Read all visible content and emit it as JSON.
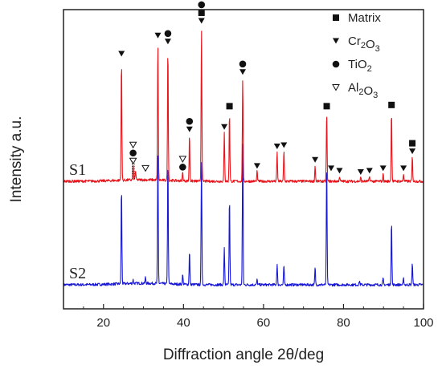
{
  "chart_data": {
    "type": "line",
    "xlabel": "Diffraction angle 2θ/deg",
    "ylabel": "Intensity a.u.",
    "xlim": [
      10,
      100
    ],
    "xticks": [
      20,
      40,
      60,
      80,
      100
    ],
    "yticks_shown": false,
    "grid": false,
    "legend_position": "top-right",
    "colors": {
      "S1": "#e8141b",
      "S2": "#1717d4",
      "marker": "#111111"
    },
    "legend": [
      {
        "symbol": "square",
        "label": "Matrix"
      },
      {
        "symbol": "triangle-down",
        "label": "Cr2O3"
      },
      {
        "symbol": "circle",
        "label": "TiO2"
      },
      {
        "symbol": "triangle-down-open",
        "label": "Al2O3"
      }
    ],
    "series": [
      {
        "name": "S1",
        "baseline": 0,
        "peaks": [
          {
            "x": 24.5,
            "y": 100
          },
          {
            "x": 27.4,
            "y": 12
          },
          {
            "x": 28.0,
            "y": 8
          },
          {
            "x": 33.6,
            "y": 115
          },
          {
            "x": 36.1,
            "y": 110
          },
          {
            "x": 39.8,
            "y": 7
          },
          {
            "x": 41.5,
            "y": 38
          },
          {
            "x": 44.5,
            "y": 127
          },
          {
            "x": 50.2,
            "y": 40
          },
          {
            "x": 51.5,
            "y": 57
          },
          {
            "x": 54.8,
            "y": 85
          },
          {
            "x": 58.4,
            "y": 8
          },
          {
            "x": 63.4,
            "y": 24
          },
          {
            "x": 65.1,
            "y": 25
          },
          {
            "x": 72.9,
            "y": 13
          },
          {
            "x": 75.8,
            "y": 57
          },
          {
            "x": 79.0,
            "y": 4
          },
          {
            "x": 84.3,
            "y": 3
          },
          {
            "x": 86.5,
            "y": 4
          },
          {
            "x": 89.9,
            "y": 6
          },
          {
            "x": 92.0,
            "y": 58
          },
          {
            "x": 95.0,
            "y": 6
          },
          {
            "x": 97.2,
            "y": 20
          }
        ]
      },
      {
        "name": "S2",
        "baseline": 0,
        "peaks": [
          {
            "x": 24.5,
            "y": 80
          },
          {
            "x": 27.4,
            "y": 3
          },
          {
            "x": 30.5,
            "y": 5
          },
          {
            "x": 33.6,
            "y": 110
          },
          {
            "x": 36.1,
            "y": 103
          },
          {
            "x": 39.8,
            "y": 8
          },
          {
            "x": 41.5,
            "y": 28
          },
          {
            "x": 44.5,
            "y": 103
          },
          {
            "x": 50.2,
            "y": 30
          },
          {
            "x": 51.5,
            "y": 72
          },
          {
            "x": 54.8,
            "y": 118
          },
          {
            "x": 58.4,
            "y": 4
          },
          {
            "x": 63.4,
            "y": 17
          },
          {
            "x": 65.1,
            "y": 16
          },
          {
            "x": 72.9,
            "y": 14
          },
          {
            "x": 75.8,
            "y": 100
          },
          {
            "x": 84.0,
            "y": 3
          },
          {
            "x": 89.9,
            "y": 5
          },
          {
            "x": 92.0,
            "y": 53
          },
          {
            "x": 95.0,
            "y": 5
          },
          {
            "x": 97.2,
            "y": 18
          }
        ]
      }
    ],
    "phase_markers": [
      {
        "x": 24.5,
        "symbols": [
          "triangle-down"
        ]
      },
      {
        "x": 27.4,
        "symbols": [
          "triangle-down-open",
          "circle",
          "triangle-down-open"
        ]
      },
      {
        "x": 30.5,
        "symbols": [
          "triangle-down-open"
        ]
      },
      {
        "x": 33.6,
        "symbols": [
          "triangle-down"
        ]
      },
      {
        "x": 36.1,
        "symbols": [
          "circle",
          "triangle-down"
        ]
      },
      {
        "x": 39.8,
        "symbols": [
          "triangle-down-open",
          "circle"
        ]
      },
      {
        "x": 41.5,
        "symbols": [
          "circle",
          "triangle-down"
        ]
      },
      {
        "x": 44.5,
        "symbols": [
          "circle",
          "square",
          "triangle-down"
        ]
      },
      {
        "x": 50.2,
        "symbols": [
          "triangle-down"
        ]
      },
      {
        "x": 51.5,
        "symbols": [
          "square"
        ]
      },
      {
        "x": 54.8,
        "symbols": [
          "circle",
          "triangle-down"
        ]
      },
      {
        "x": 58.4,
        "symbols": [
          "triangle-down"
        ]
      },
      {
        "x": 63.4,
        "symbols": [
          "triangle-down"
        ]
      },
      {
        "x": 65.1,
        "symbols": [
          "triangle-down"
        ]
      },
      {
        "x": 72.9,
        "symbols": [
          "triangle-down"
        ]
      },
      {
        "x": 75.8,
        "symbols": [
          "square"
        ]
      },
      {
        "x": 76.9,
        "symbols": [
          "triangle-down"
        ]
      },
      {
        "x": 79.0,
        "symbols": [
          "triangle-down"
        ]
      },
      {
        "x": 84.3,
        "symbols": [
          "triangle-down"
        ]
      },
      {
        "x": 86.5,
        "symbols": [
          "triangle-down"
        ]
      },
      {
        "x": 89.9,
        "symbols": [
          "triangle-down"
        ]
      },
      {
        "x": 92.0,
        "symbols": [
          "square"
        ]
      },
      {
        "x": 95.0,
        "symbols": [
          "triangle-down"
        ]
      },
      {
        "x": 97.2,
        "symbols": [
          "square",
          "triangle-down"
        ]
      }
    ]
  }
}
